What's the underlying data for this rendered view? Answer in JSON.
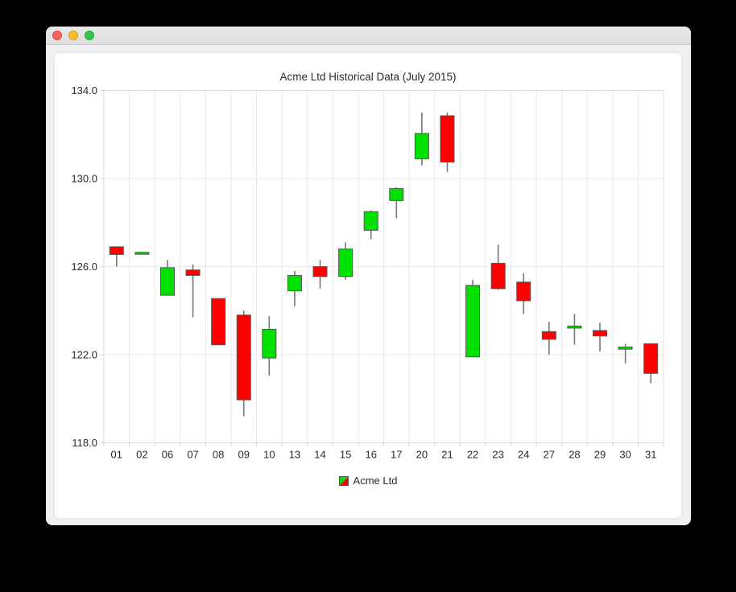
{
  "window": {
    "controls": [
      {
        "name": "close",
        "color": "#f96256"
      },
      {
        "name": "minimize",
        "color": "#fdbc2e"
      },
      {
        "name": "zoom",
        "color": "#33c748"
      }
    ]
  },
  "chart_data": {
    "type": "candlestick",
    "title": "Acme Ltd Historical Data (July 2015)",
    "xlabel": "",
    "ylabel": "",
    "ylim": [
      118,
      134
    ],
    "yticks": [
      118,
      122,
      126,
      130,
      134
    ],
    "ytick_labels": [
      "118.0",
      "122.0",
      "126.0",
      "130.0",
      "134.0"
    ],
    "grid": true,
    "legend_position": "bottom",
    "legend": [
      {
        "label": "Acme Ltd"
      }
    ],
    "categories": [
      "01",
      "02",
      "06",
      "07",
      "08",
      "09",
      "10",
      "13",
      "14",
      "15",
      "16",
      "17",
      "20",
      "21",
      "22",
      "23",
      "24",
      "27",
      "28",
      "29",
      "30",
      "31"
    ],
    "series": [
      {
        "name": "Acme Ltd",
        "ohlc": [
          {
            "date": "01",
            "open": 126.9,
            "high": 126.9,
            "low": 126.0,
            "close": 126.55
          },
          {
            "date": "02",
            "open": 126.65,
            "high": 126.65,
            "low": 126.65,
            "close": 126.65
          },
          {
            "date": "06",
            "open": 124.7,
            "high": 126.3,
            "low": 124.7,
            "close": 125.95
          },
          {
            "date": "07",
            "open": 125.85,
            "high": 126.1,
            "low": 123.7,
            "close": 125.6
          },
          {
            "date": "08",
            "open": 124.55,
            "high": 124.55,
            "low": 122.45,
            "close": 122.45
          },
          {
            "date": "09",
            "open": 123.8,
            "high": 124.0,
            "low": 119.2,
            "close": 119.95
          },
          {
            "date": "10",
            "open": 121.85,
            "high": 123.75,
            "low": 121.05,
            "close": 123.15
          },
          {
            "date": "13",
            "open": 124.9,
            "high": 125.8,
            "low": 124.2,
            "close": 125.6
          },
          {
            "date": "14",
            "open": 126.0,
            "high": 126.3,
            "low": 125.0,
            "close": 125.55
          },
          {
            "date": "15",
            "open": 125.55,
            "high": 127.1,
            "low": 125.4,
            "close": 126.8
          },
          {
            "date": "16",
            "open": 127.65,
            "high": 128.55,
            "low": 127.25,
            "close": 128.5
          },
          {
            "date": "17",
            "open": 129.0,
            "high": 129.6,
            "low": 128.2,
            "close": 129.55
          },
          {
            "date": "20",
            "open": 130.9,
            "high": 133.0,
            "low": 130.6,
            "close": 132.05
          },
          {
            "date": "21",
            "open": 132.85,
            "high": 133.0,
            "low": 130.3,
            "close": 130.75
          },
          {
            "date": "22",
            "open": 121.9,
            "high": 125.4,
            "low": 121.9,
            "close": 125.15
          },
          {
            "date": "23",
            "open": 126.15,
            "high": 127.0,
            "low": 124.95,
            "close": 125.0
          },
          {
            "date": "24",
            "open": 125.3,
            "high": 125.7,
            "low": 123.85,
            "close": 124.45
          },
          {
            "date": "27",
            "open": 123.05,
            "high": 123.5,
            "low": 122.0,
            "close": 122.7
          },
          {
            "date": "28",
            "open": 123.3,
            "high": 123.85,
            "low": 122.45,
            "close": 123.3
          },
          {
            "date": "29",
            "open": 123.1,
            "high": 123.45,
            "low": 122.15,
            "close": 122.85
          },
          {
            "date": "30",
            "open": 122.25,
            "high": 122.5,
            "low": 121.6,
            "close": 122.35
          },
          {
            "date": "31",
            "open": 122.5,
            "high": 122.5,
            "low": 120.7,
            "close": 121.15
          }
        ]
      }
    ],
    "colors": {
      "bullish": "#00e100",
      "bearish": "#ff0000",
      "body_border": "#555555",
      "wick": "#777777",
      "grid": "#e9e9e9",
      "plot_border": "#dcdcdc",
      "tick": "#cccccc",
      "text": "#2b2b2b"
    }
  }
}
